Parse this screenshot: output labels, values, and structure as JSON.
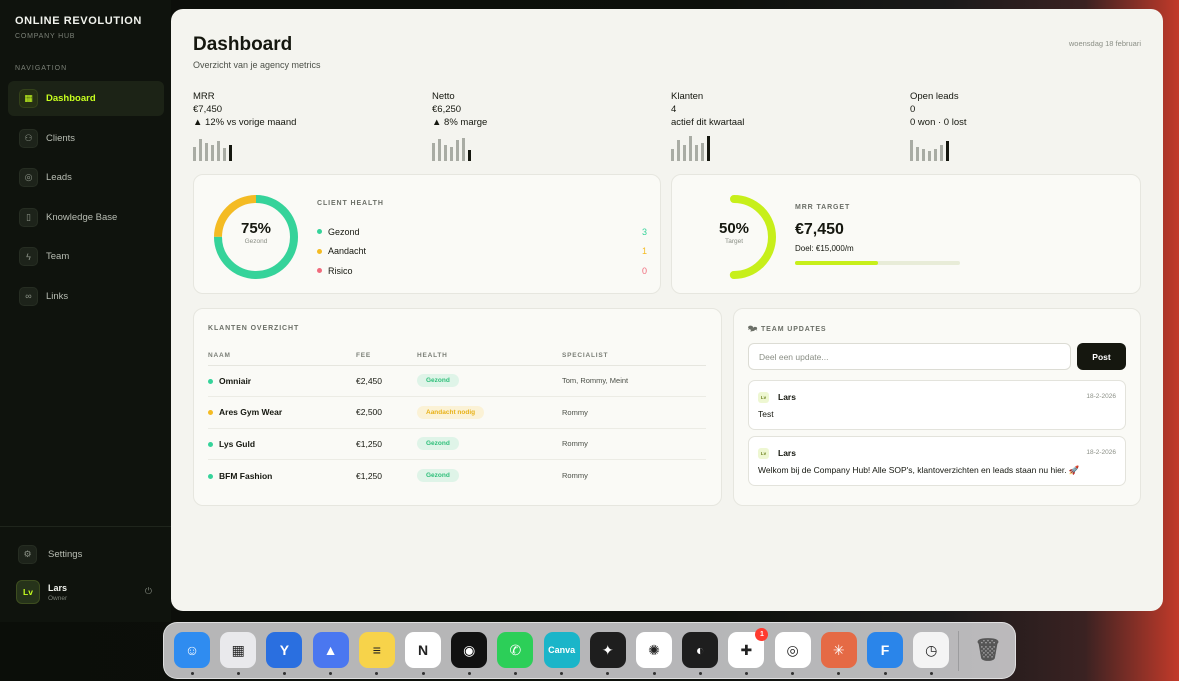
{
  "brand": {
    "name": "ONLINE REVOLUTION",
    "subtitle": "COMPANY HUB"
  },
  "sidebar": {
    "heading": "NAVIGATION",
    "items": [
      {
        "label": "Dashboard",
        "icon": "grid-icon",
        "active": true
      },
      {
        "label": "Clients",
        "icon": "users-icon",
        "active": false
      },
      {
        "label": "Leads",
        "icon": "target-icon",
        "active": false
      },
      {
        "label": "Knowledge Base",
        "icon": "book-icon",
        "active": false
      },
      {
        "label": "Team",
        "icon": "bolt-icon",
        "active": false
      },
      {
        "label": "Links",
        "icon": "link-icon",
        "active": false
      }
    ],
    "settings_label": "Settings",
    "user": {
      "initials": "Lv",
      "name": "Lars",
      "role": "Owner"
    }
  },
  "header": {
    "title": "Dashboard",
    "subtitle": "Overzicht van je agency metrics",
    "date": "woensdag 18 februari"
  },
  "stats": [
    {
      "label": "MRR",
      "value": "€7,450",
      "note": "▲ 12% vs vorige maand",
      "spark": [
        0.55,
        0.85,
        0.7,
        0.6,
        0.75,
        0.5,
        0.62
      ]
    },
    {
      "label": "Netto",
      "value": "€6,250",
      "note": "▲ 8% marge",
      "spark": [
        0.7,
        0.85,
        0.6,
        0.55,
        0.8,
        0.9,
        0.42
      ]
    },
    {
      "label": "Klanten",
      "value": "4",
      "note": "actief dit kwartaal",
      "spark": [
        0.45,
        0.8,
        0.6,
        0.95,
        0.6,
        0.7,
        0.95
      ]
    },
    {
      "label": "Open leads",
      "value": "0",
      "note": "0 won · 0 lost",
      "spark": [
        0.8,
        0.55,
        0.45,
        0.4,
        0.45,
        0.6,
        0.75
      ]
    }
  ],
  "client_health": {
    "heading": "CLIENT HEALTH",
    "percent": "75%",
    "caption": "Gezond",
    "rows": [
      {
        "label": "Gezond",
        "count": "3",
        "color": "#35d39a"
      },
      {
        "label": "Aandacht",
        "count": "1",
        "color": "#f4bb23"
      },
      {
        "label": "Risico",
        "count": "0",
        "color": "#f06b7c"
      }
    ]
  },
  "mrr_target": {
    "heading": "MRR TARGET",
    "percent": "50%",
    "caption": "Target",
    "value": "€7,450",
    "goal": "Doel: €15,000/m",
    "progress": 0.5,
    "color": "#c7ef1a"
  },
  "clients_overview": {
    "heading": "KLANTEN OVERZICHT",
    "columns": [
      "NAAM",
      "FEE",
      "HEALTH",
      "SPECIALIST"
    ],
    "rows": [
      {
        "name": "Omniair",
        "fee": "€2,450",
        "health": "Gezond",
        "status": "good",
        "specialist": "Tom, Rommy, Meint"
      },
      {
        "name": "Ares Gym Wear",
        "fee": "€2,500",
        "health": "Aandacht nodig",
        "status": "warn",
        "specialist": "Rommy"
      },
      {
        "name": "Lys Guld",
        "fee": "€1,250",
        "health": "Gezond",
        "status": "good",
        "specialist": "Rommy"
      },
      {
        "name": "BFM Fashion",
        "fee": "€1,250",
        "health": "Gezond",
        "status": "good",
        "specialist": "Rommy"
      }
    ]
  },
  "team_updates": {
    "heading": "TEAM UPDATES",
    "placeholder": "Deel een update...",
    "post_label": "Post",
    "updates": [
      {
        "initials": "Lv",
        "author": "Lars",
        "date": "18-2-2026",
        "text": "Test"
      },
      {
        "initials": "Lv",
        "author": "Lars",
        "date": "18-2-2026",
        "text": "Welkom bij de Company Hub! Alle SOP's, klantoverzichten en leads staan nu hier. 🚀"
      }
    ]
  },
  "dock": {
    "apps": [
      {
        "name": "finder-icon",
        "color": "#2f8cf0",
        "glyph": "☺"
      },
      {
        "name": "launchpad-icon",
        "color": "#e9e9ec",
        "glyph": "▦"
      },
      {
        "name": "yoast-icon",
        "color": "#2a6fe0",
        "glyph": "Y"
      },
      {
        "name": "nordvpn-icon",
        "color": "#4a77f0",
        "glyph": "▲"
      },
      {
        "name": "notes-icon",
        "color": "#f7d34a",
        "glyph": "≡"
      },
      {
        "name": "notion-icon",
        "color": "#ffffff",
        "glyph": "N"
      },
      {
        "name": "spotify-icon",
        "color": "#111111",
        "glyph": "◉"
      },
      {
        "name": "whatsapp-icon",
        "color": "#2ccf58",
        "glyph": "✆"
      },
      {
        "name": "canva-icon",
        "color": "#1ab5c9",
        "glyph": "Canva"
      },
      {
        "name": "figma-icon",
        "color": "#1e1e1e",
        "glyph": "✦"
      },
      {
        "name": "chatgpt-icon",
        "color": "#ffffff",
        "glyph": "✺"
      },
      {
        "name": "linear-icon",
        "color": "#1e1e1e",
        "glyph": "◐"
      },
      {
        "name": "slack-icon",
        "color": "#ffffff",
        "glyph": "✚",
        "badge": "1"
      },
      {
        "name": "chrome-icon",
        "color": "#ffffff",
        "glyph": "◎"
      },
      {
        "name": "claude-icon",
        "color": "#e56a45",
        "glyph": "✳"
      },
      {
        "name": "framer-icon",
        "color": "#2a85ea",
        "glyph": "F"
      },
      {
        "name": "clock-icon",
        "color": "#f4f4f4",
        "glyph": "◷"
      }
    ],
    "trash": {
      "name": "trash-icon",
      "glyph": "🗑"
    }
  }
}
